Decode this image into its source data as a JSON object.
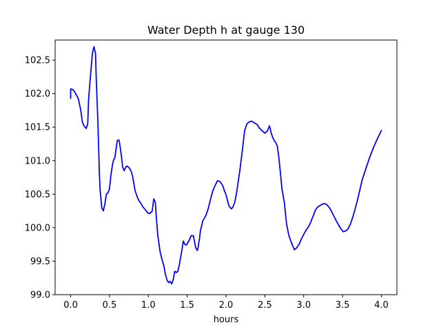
{
  "chart_data": {
    "type": "line",
    "title": "Water Depth h at gauge 130",
    "xlabel": "hours",
    "ylabel": "",
    "xlim": [
      -0.2,
      4.2
    ],
    "ylim": [
      99.0,
      102.8
    ],
    "xticks": [
      0.0,
      0.5,
      1.0,
      1.5,
      2.0,
      2.5,
      3.0,
      3.5,
      4.0
    ],
    "xtick_labels": [
      "0.0",
      "0.5",
      "1.0",
      "1.5",
      "2.0",
      "2.5",
      "3.0",
      "3.5",
      "4.0"
    ],
    "yticks": [
      99.0,
      99.5,
      100.0,
      100.5,
      101.0,
      101.5,
      102.0,
      102.5
    ],
    "ytick_labels": [
      "99.0",
      "99.5",
      "100.0",
      "100.5",
      "101.0",
      "101.5",
      "102.0",
      "102.5"
    ],
    "grid": false,
    "legend": "none",
    "series": [
      {
        "color": "#0000ff",
        "x": [
          0.0,
          0.0,
          0.03,
          0.06,
          0.1,
          0.13,
          0.15,
          0.17,
          0.2,
          0.22,
          0.23,
          0.25,
          0.28,
          0.3,
          0.32,
          0.33,
          0.35,
          0.37,
          0.38,
          0.4,
          0.42,
          0.44,
          0.46,
          0.48,
          0.5,
          0.52,
          0.54,
          0.55,
          0.57,
          0.6,
          0.62,
          0.63,
          0.65,
          0.67,
          0.69,
          0.7,
          0.72,
          0.75,
          0.78,
          0.8,
          0.83,
          0.86,
          0.88,
          0.9,
          0.93,
          0.96,
          0.99,
          1.02,
          1.05,
          1.07,
          1.09,
          1.1,
          1.12,
          1.13,
          1.15,
          1.17,
          1.2,
          1.22,
          1.24,
          1.26,
          1.28,
          1.3,
          1.32,
          1.34,
          1.36,
          1.38,
          1.4,
          1.43,
          1.45,
          1.47,
          1.49,
          1.51,
          1.53,
          1.55,
          1.58,
          1.61,
          1.63,
          1.64,
          1.66,
          1.67,
          1.69,
          1.7,
          1.72,
          1.74,
          1.77,
          1.8,
          1.83,
          1.86,
          1.89,
          1.92,
          1.94,
          1.96,
          1.98,
          2.0,
          2.02,
          2.04,
          2.07,
          2.09,
          2.11,
          2.13,
          2.15,
          2.18,
          2.21,
          2.24,
          2.27,
          2.3,
          2.33,
          2.37,
          2.4,
          2.42,
          2.46,
          2.5,
          2.53,
          2.56,
          2.58,
          2.6,
          2.62,
          2.64,
          2.66,
          2.68,
          2.7,
          2.72,
          2.75,
          2.78,
          2.81,
          2.85,
          2.88,
          2.91,
          2.94,
          2.97,
          3.0,
          3.03,
          3.06,
          3.09,
          3.12,
          3.15,
          3.18,
          3.21,
          3.24,
          3.27,
          3.3,
          3.33,
          3.36,
          3.39,
          3.42,
          3.45,
          3.48,
          3.51,
          3.54,
          3.57,
          3.6,
          3.63,
          3.66,
          3.69,
          3.72,
          3.75,
          3.8,
          3.85,
          3.9,
          3.95,
          4.0
        ],
        "y": [
          101.93,
          102.07,
          102.06,
          102.01,
          101.92,
          101.75,
          101.58,
          101.52,
          101.48,
          101.55,
          101.9,
          102.2,
          102.6,
          102.7,
          102.6,
          102.2,
          101.6,
          100.8,
          100.55,
          100.3,
          100.25,
          100.35,
          100.5,
          100.52,
          100.58,
          100.8,
          100.95,
          101.0,
          101.05,
          101.3,
          101.31,
          101.26,
          101.1,
          100.9,
          100.85,
          100.88,
          100.92,
          100.9,
          100.84,
          100.75,
          100.55,
          100.45,
          100.4,
          100.37,
          100.31,
          100.27,
          100.22,
          100.21,
          100.25,
          100.43,
          100.38,
          100.2,
          99.9,
          99.82,
          99.65,
          99.55,
          99.43,
          99.3,
          99.22,
          99.18,
          99.2,
          99.16,
          99.22,
          99.35,
          99.33,
          99.35,
          99.45,
          99.65,
          99.8,
          99.75,
          99.74,
          99.78,
          99.82,
          99.88,
          99.88,
          99.7,
          99.66,
          99.7,
          99.85,
          99.95,
          100.05,
          100.1,
          100.14,
          100.18,
          100.28,
          100.42,
          100.55,
          100.63,
          100.7,
          100.69,
          100.66,
          100.62,
          100.55,
          100.49,
          100.4,
          100.32,
          100.28,
          100.31,
          100.37,
          100.48,
          100.63,
          100.87,
          101.15,
          101.45,
          101.55,
          101.58,
          101.59,
          101.56,
          101.54,
          101.5,
          101.45,
          101.41,
          101.44,
          101.52,
          101.42,
          101.35,
          101.3,
          101.27,
          101.22,
          101.05,
          100.82,
          100.58,
          100.38,
          100.05,
          99.88,
          99.75,
          99.67,
          99.7,
          99.75,
          99.83,
          99.9,
          99.96,
          100.01,
          100.08,
          100.17,
          100.26,
          100.31,
          100.33,
          100.35,
          100.36,
          100.34,
          100.3,
          100.24,
          100.17,
          100.1,
          100.04,
          99.98,
          99.94,
          99.95,
          99.98,
          100.05,
          100.15,
          100.27,
          100.4,
          100.55,
          100.7,
          100.88,
          101.05,
          101.2,
          101.33,
          101.45
        ]
      }
    ]
  }
}
